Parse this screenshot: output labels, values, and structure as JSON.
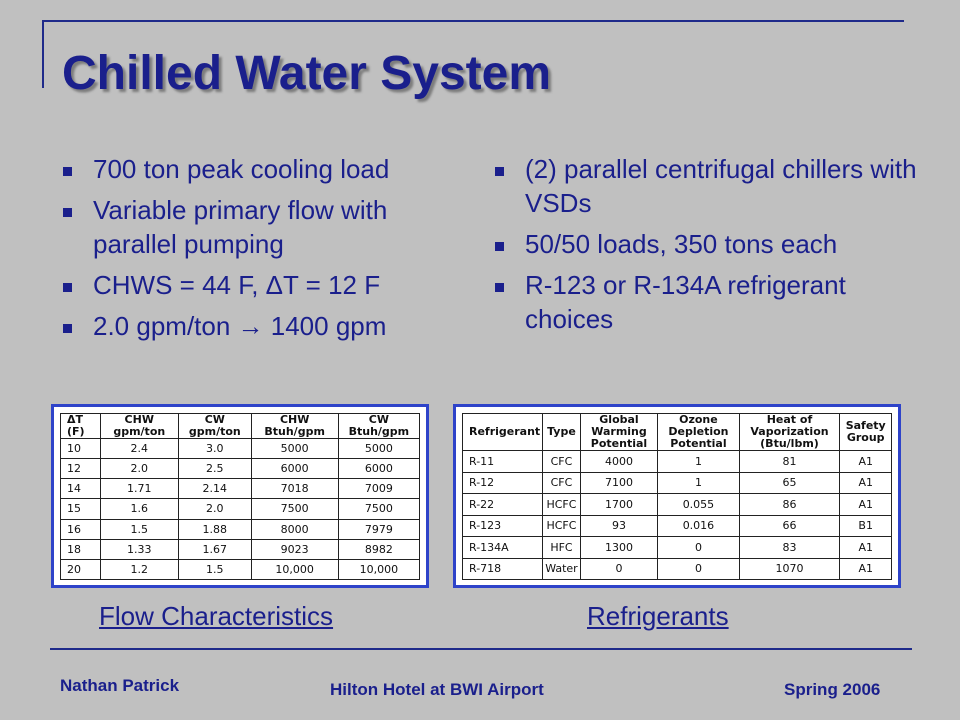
{
  "title": "Chilled Water System",
  "left_bullets": [
    "700 ton peak cooling load",
    "Variable primary flow with parallel pumping",
    "CHWS = 44 F, ΔT = 12 F",
    "2.0 gpm/ton  →  1400 gpm"
  ],
  "right_bullets": [
    "(2) parallel centrifugal chillers with VSDs",
    "50/50 loads, 350 tons each",
    "R-123 or R-134A refrigerant choices"
  ],
  "flow_table": {
    "headers": [
      "ΔT (F)",
      "CHW gpm/ton",
      "CW gpm/ton",
      "CHW Btuh/gpm",
      "CW Btuh/gpm"
    ],
    "rows": [
      [
        "10",
        "2.4",
        "3.0",
        "5000",
        "5000"
      ],
      [
        "12",
        "2.0",
        "2.5",
        "6000",
        "6000"
      ],
      [
        "14",
        "1.71",
        "2.14",
        "7018",
        "7009"
      ],
      [
        "15",
        "1.6",
        "2.0",
        "7500",
        "7500"
      ],
      [
        "16",
        "1.5",
        "1.88",
        "8000",
        "7979"
      ],
      [
        "18",
        "1.33",
        "1.67",
        "9023",
        "8982"
      ],
      [
        "20",
        "1.2",
        "1.5",
        "10,000",
        "10,000"
      ]
    ]
  },
  "refrigerant_table": {
    "headers": [
      "Refrigerant",
      "Type",
      "Global Warming Potential",
      "Ozone Depletion Potential",
      "Heat of Vaporization (Btu/lbm)",
      "Safety Group"
    ],
    "rows": [
      [
        "R-11",
        "CFC",
        "4000",
        "1",
        "81",
        "A1"
      ],
      [
        "R-12",
        "CFC",
        "7100",
        "1",
        "65",
        "A1"
      ],
      [
        "R-22",
        "HCFC",
        "1700",
        "0.055",
        "86",
        "A1"
      ],
      [
        "R-123",
        "HCFC",
        "93",
        "0.016",
        "66",
        "B1"
      ],
      [
        "R-134A",
        "HFC",
        "1300",
        "0",
        "83",
        "A1"
      ],
      [
        "R-718",
        "Water",
        "0",
        "0",
        "1070",
        "A1"
      ]
    ]
  },
  "captions": {
    "flow": "Flow Characteristics",
    "refrigerants": "Refrigerants"
  },
  "footer": {
    "author": "Nathan Patrick",
    "project": "Hilton Hotel at BWI Airport",
    "term": "Spring 2006"
  }
}
